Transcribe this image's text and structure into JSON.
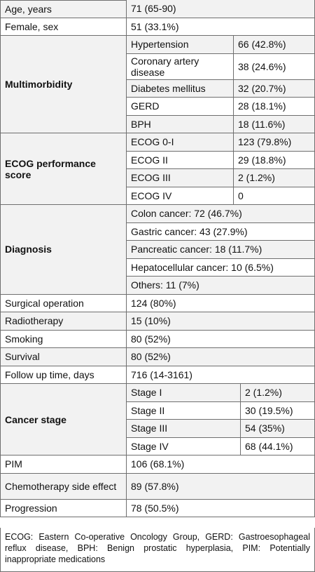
{
  "rows": [
    {
      "label": "Age, years",
      "value": "71 (65-90)"
    },
    {
      "label": "Female, sex",
      "value": "51 (33.1%)"
    },
    {
      "group": "Multimorbidity",
      "items": [
        {
          "label": "Hypertension",
          "value": "66 (42.8%)"
        },
        {
          "label": "Coronary artery disease",
          "value": "38 (24.6%)"
        },
        {
          "label": "Diabetes mellitus",
          "value": "32 (20.7%)"
        },
        {
          "label": "GERD",
          "value": "28 (18.1%)"
        },
        {
          "label": "BPH",
          "value": "18 (11.6%)"
        }
      ]
    },
    {
      "group": "ECOG performance score",
      "items": [
        {
          "label": "ECOG 0-I",
          "value": "123 (79.8%)"
        },
        {
          "label": "ECOG II",
          "value": "29 (18.8%)"
        },
        {
          "label": "ECOG III",
          "value": "2 (1.2%)"
        },
        {
          "label": "ECOG IV",
          "value": "0"
        }
      ]
    },
    {
      "group": "Diagnosis",
      "items": [
        {
          "text": "Colon cancer: 72 (46.7%)"
        },
        {
          "text": "Gastric cancer: 43 (27.9%)"
        },
        {
          "text": "Pancreatic cancer: 18 (11.7%)"
        },
        {
          "text": "Hepatocellular cancer: 10 (6.5%)"
        },
        {
          "text": "Others: 11 (7%)"
        }
      ]
    },
    {
      "label": "Surgical operation",
      "value": "124 (80%)"
    },
    {
      "label": "Radiotherapy",
      "value": "15 (10%)"
    },
    {
      "label": "Smoking",
      "value": "80 (52%)"
    },
    {
      "label": "Survival",
      "value": "80 (52%)"
    },
    {
      "label": "Follow up time, days",
      "value": "716 (14-3161)"
    },
    {
      "group": "Cancer stage",
      "items": [
        {
          "label": "Stage I",
          "value": "2 (1.2%)"
        },
        {
          "label": "Stage II",
          "value": "30 (19.5%)"
        },
        {
          "label": "Stage III",
          "value": "54 (35%)"
        },
        {
          "label": "Stage IV",
          "value": "68 (44.1%)"
        }
      ]
    },
    {
      "label": "PIM",
      "value": "106 (68.1%)"
    },
    {
      "label": "Chemotherapy side effect",
      "value": "89 (57.8%)"
    },
    {
      "label": "Progression",
      "value": "78 (50.5%)"
    }
  ],
  "footnote": "ECOG: Eastern Co-operative Oncology Group, GERD: Gastroesophageal reflux disease, BPH: Benign prostatic hyperplasia, PIM: Potentially inappropriate medications"
}
